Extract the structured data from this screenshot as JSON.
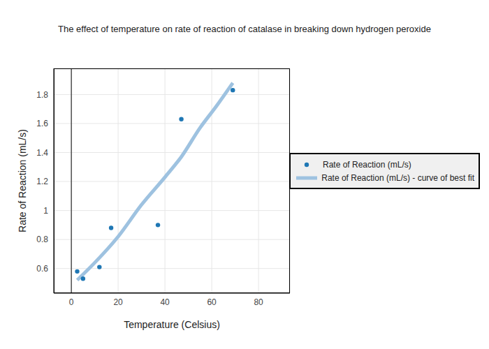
{
  "chart_data": {
    "type": "scatter",
    "title": "The effect of temperature on rate of reaction of catalase in breaking down hydrogen peroxide",
    "x_label": "Temperature (Celsius)",
    "y_label": "Rate of Reaction (mL/s)",
    "series": [
      {
        "name": "Rate of Reaction (mL/s)",
        "type": "scatter",
        "color": "#1f77b4",
        "marker": "circle",
        "x": [
          2.5,
          5,
          12,
          17,
          37,
          47,
          69
        ],
        "values": [
          0.58,
          0.53,
          0.61,
          0.88,
          0.9,
          1.63,
          1.83
        ]
      },
      {
        "name": "Rate of Reaction (mL/s) - curve of best fit",
        "type": "line",
        "color": "#9ec2e0",
        "line_style": "solid",
        "x": [
          2.5,
          10,
          20,
          30,
          40,
          47,
          55,
          62,
          69
        ],
        "values": [
          0.52,
          0.64,
          0.82,
          1.04,
          1.23,
          1.37,
          1.57,
          1.72,
          1.88
        ]
      }
    ],
    "xlim": [
      -7.5,
      93.4
    ],
    "xticks": [
      0,
      20,
      40,
      60,
      80
    ],
    "ylim": [
      0.43,
      1.98
    ],
    "yticks": [
      0.6,
      0.8,
      1,
      1.2,
      1.4,
      1.6,
      1.8
    ],
    "grid": true,
    "legend": "right"
  }
}
